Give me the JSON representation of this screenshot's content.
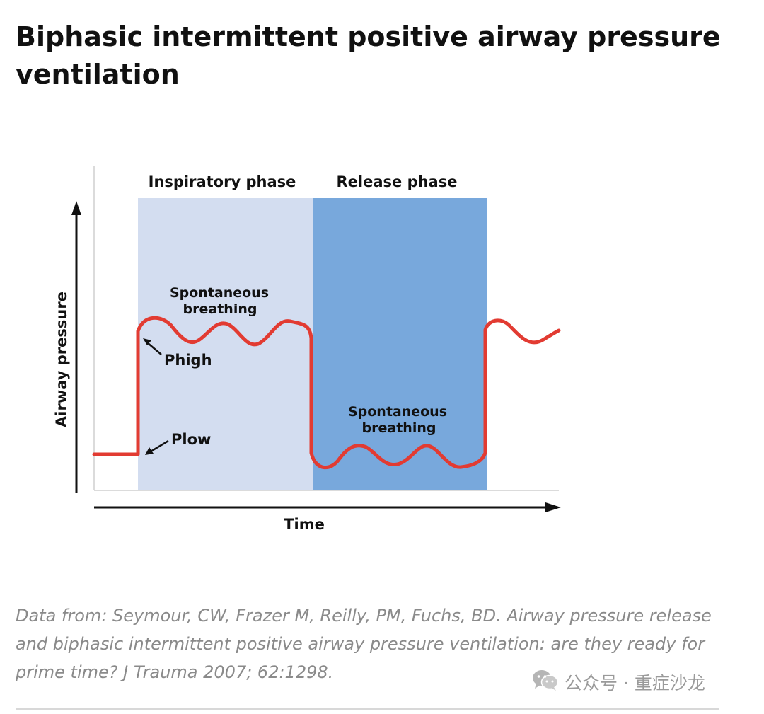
{
  "article": {
    "title": "Biphasic intermittent positive airway pressure ventilation",
    "caption": "Data from: Seymour, CW, Frazer M, Reilly, PM, Fuchs, BD. Airway pressure release and biphasic intermittent positive airway pressure ventilation: are they ready for prime time? J Trauma 2007; 62:1298."
  },
  "diagram": {
    "phase_inspiratory": "Inspiratory phase",
    "phase_release": "Release phase",
    "spont_high_line1": "Spontaneous",
    "spont_high_line2": "breathing",
    "spont_low_line1": "Spontaneous",
    "spont_low_line2": "breathing",
    "phigh": "Phigh",
    "plow": "Plow",
    "y_axis": "Airway pressure",
    "x_axis": "Time"
  },
  "watermark": {
    "text": "公众号 · 重症沙龙",
    "icon": "wechat-icon"
  },
  "colors": {
    "inspiratory_band": "#d3ddf0",
    "release_band": "#78a8dc",
    "curve": "#e23b32",
    "axis": "#111111"
  }
}
